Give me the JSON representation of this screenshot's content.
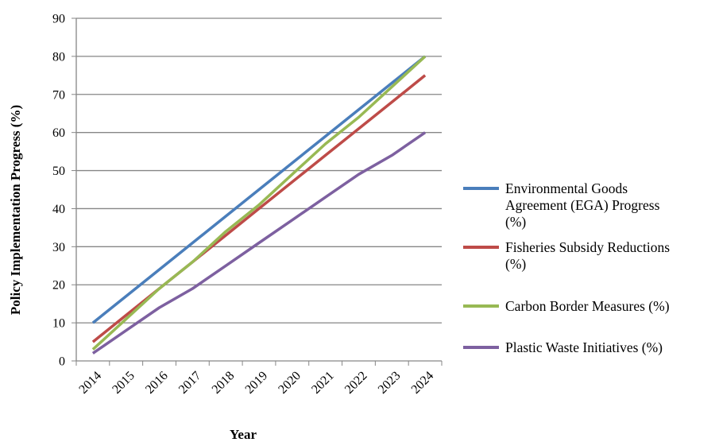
{
  "chart_data": {
    "type": "line",
    "title": "",
    "xlabel": "Year",
    "ylabel": "Policy Implementation Progress (%)",
    "x": [
      "2014",
      "2015",
      "2016",
      "2017",
      "2018",
      "2019",
      "2020",
      "2021",
      "2022",
      "2023",
      "2024"
    ],
    "ylim": [
      0,
      90
    ],
    "yticks": [
      0,
      10,
      20,
      30,
      40,
      50,
      60,
      70,
      80,
      90
    ],
    "grid": "horizontal",
    "legend_position": "right",
    "series": [
      {
        "name_lines": [
          "Environmental Goods",
          "Agreement (EGA) Progress",
          "(%)"
        ],
        "name": "Environmental Goods Agreement (EGA) Progress (%)",
        "color": "#4a7ebb",
        "values": [
          10,
          17,
          24,
          31,
          38,
          45,
          52,
          59,
          66,
          73,
          80
        ]
      },
      {
        "name_lines": [
          "Fisheries Subsidy Reductions",
          "(%)"
        ],
        "name": "Fisheries Subsidy Reductions (%)",
        "color": "#be4b48",
        "values": [
          5,
          12,
          19,
          26,
          33,
          40,
          47,
          54,
          61,
          68,
          75
        ]
      },
      {
        "name_lines": [
          "Carbon Border Measures (%)"
        ],
        "name": "Carbon Border Measures (%)",
        "color": "#98b954",
        "values": [
          3,
          11,
          19,
          26,
          34,
          41,
          49,
          57,
          64,
          72,
          80
        ]
      },
      {
        "name_lines": [
          "Plastic Waste Initiatives (%)"
        ],
        "name": "Plastic Waste Initiatives (%)",
        "color": "#7d60a0",
        "values": [
          2,
          8,
          14,
          19,
          25,
          31,
          37,
          43,
          49,
          54,
          60
        ]
      }
    ]
  }
}
